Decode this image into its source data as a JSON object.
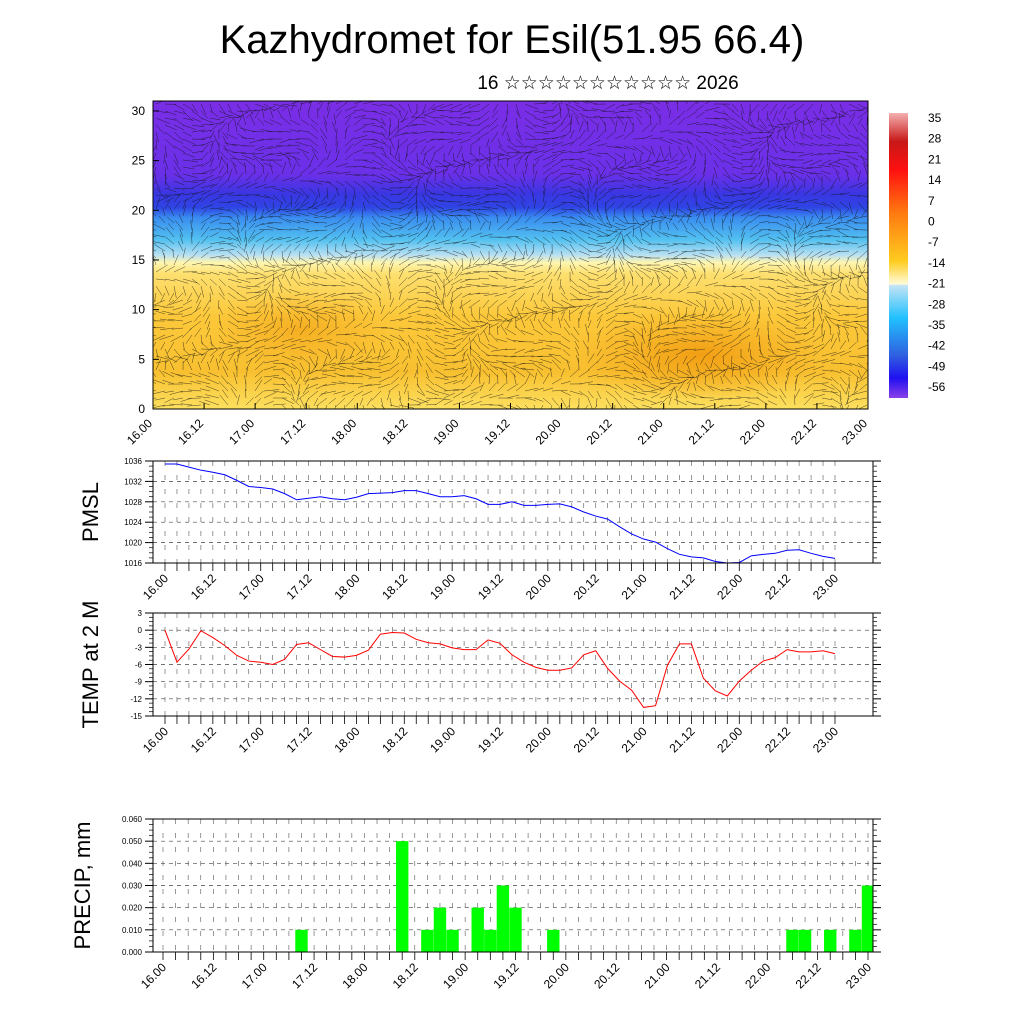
{
  "title": "Kazhydromet for Esil(51.95 66.4)",
  "subtitle": "16 ☆☆☆☆☆☆☆☆☆☆☆ 2026",
  "x_tick_labels": [
    "16.00",
    "16.12",
    "17.00",
    "17.12",
    "18.00",
    "18.12",
    "19.00",
    "19.12",
    "20.00",
    "20.12",
    "21.00",
    "21.12",
    "22.00",
    "22.12",
    "23.00"
  ],
  "chart_data": [
    {
      "type": "heatmap",
      "name": "temperature-cross-section",
      "xlabel": "",
      "ylabel": "",
      "ylim": [
        0,
        31
      ],
      "y_tick_labels": [
        "0",
        "5",
        "10",
        "15",
        "20",
        "25",
        "30"
      ],
      "colorbar_labels": [
        "35",
        "28",
        "21",
        "14",
        "7",
        "0",
        "-7",
        "-14",
        "-21",
        "-28",
        "-35",
        "-42",
        "-49",
        "-56"
      ],
      "colors": {
        "top": "#7a2ee6",
        "band": "#2f3ee0",
        "mid": "#3fa8ee",
        "light": "#b8e0f2",
        "pale": "#fff6b0",
        "warm": "#fcc83a",
        "core": "#f4a418"
      },
      "overlay": "wind vectors"
    },
    {
      "type": "line",
      "name": "pmsl",
      "ylabel": "PMSL",
      "ylim": [
        1016,
        1036
      ],
      "y_tick_labels": [
        "1016",
        "1020",
        "1024",
        "1028",
        "1032",
        "1036"
      ],
      "x_step_hours": 3,
      "color": "#0000ff",
      "values": [
        1035.4,
        1035.4,
        1034.8,
        1034.2,
        1033.8,
        1033.3,
        1032.2,
        1031.0,
        1030.8,
        1030.5,
        1029.6,
        1028.4,
        1028.7,
        1029.0,
        1028.6,
        1028.4,
        1028.9,
        1029.6,
        1029.7,
        1029.8,
        1030.2,
        1030.2,
        1029.6,
        1029.0,
        1029.0,
        1029.2,
        1028.6,
        1027.5,
        1027.5,
        1028.0,
        1027.3,
        1027.3,
        1027.5,
        1027.6,
        1027.0,
        1026.0,
        1025.2,
        1024.6,
        1023.1,
        1021.7,
        1020.7,
        1020.1,
        1018.8,
        1017.7,
        1017.2,
        1017.0,
        1016.3,
        1016.0,
        1016.1,
        1017.4,
        1017.7,
        1017.9,
        1018.5,
        1018.6,
        1017.9,
        1017.3,
        1016.9
      ]
    },
    {
      "type": "line",
      "name": "temp-2m",
      "ylabel": "TEMP at 2 M",
      "ylim": [
        -15,
        3
      ],
      "y_tick_labels": [
        "-15",
        "-12",
        "-9",
        "-6",
        "-3",
        "0",
        "3"
      ],
      "x_step_hours": 3,
      "color": "#ff0000",
      "values": [
        0,
        -5.6,
        -3.3,
        -0.1,
        -1.3,
        -2.7,
        -4.4,
        -5.4,
        -5.6,
        -6.0,
        -5.1,
        -2.5,
        -2.2,
        -3.4,
        -4.6,
        -4.7,
        -4.4,
        -3.5,
        -0.7,
        -0.4,
        -0.5,
        -1.6,
        -2.2,
        -2.4,
        -3.1,
        -3.4,
        -3.4,
        -1.7,
        -2.3,
        -4.3,
        -5.6,
        -6.5,
        -7.0,
        -7.0,
        -6.6,
        -4.3,
        -3.6,
        -6.7,
        -8.9,
        -10.5,
        -13.5,
        -13.2,
        -6.1,
        -2.4,
        -2.4,
        -8.4,
        -10.6,
        -11.5,
        -8.9,
        -7.0,
        -5.4,
        -4.8,
        -3.4,
        -3.8,
        -3.8,
        -3.6,
        -4.1
      ]
    },
    {
      "type": "bar",
      "name": "precip",
      "ylabel": "PRECIP, mm",
      "ylim": [
        0,
        0.06
      ],
      "y_tick_labels": [
        "0.000",
        "0.010",
        "0.020",
        "0.030",
        "0.040",
        "0.050",
        "0.060"
      ],
      "x_step_hours": 3,
      "color": "#00ff00",
      "values": [
        0,
        0,
        0,
        0,
        0,
        0,
        0,
        0,
        0,
        0,
        0,
        0.01,
        0,
        0,
        0,
        0,
        0,
        0,
        0,
        0.05,
        0,
        0.01,
        0.02,
        0.01,
        0,
        0.02,
        0.01,
        0.03,
        0.02,
        0,
        0,
        0.01,
        0,
        0,
        0,
        0,
        0,
        0,
        0,
        0,
        0,
        0,
        0,
        0,
        0,
        0,
        0,
        0,
        0,
        0,
        0.01,
        0.01,
        0,
        0.01,
        0,
        0.01,
        0.03
      ]
    }
  ]
}
